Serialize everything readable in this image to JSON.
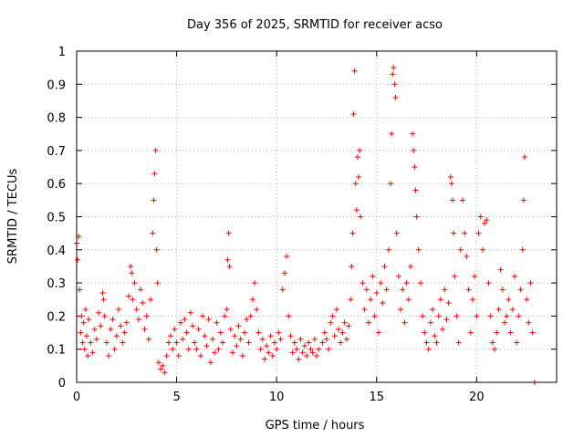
{
  "chart_data": {
    "type": "scatter",
    "title": "Day 356 of 2025, SRMTID for receiver acso",
    "xlabel": "GPS time / hours",
    "ylabel": "SRMTID / TECUs",
    "xlim": [
      0,
      24
    ],
    "ylim": [
      0,
      1
    ],
    "xticks": [
      0,
      5,
      10,
      15,
      20
    ],
    "xtick_labels": [
      "0",
      "5",
      "10",
      "15",
      "20"
    ],
    "yticks": [
      0,
      0.1,
      0.2,
      0.3,
      0.4,
      0.5,
      0.6,
      0.7,
      0.8,
      0.9,
      1
    ],
    "ytick_labels": [
      "0",
      "0.1",
      "0.2",
      "0.3",
      "0.4",
      "0.5",
      "0.6",
      "0.7",
      "0.8",
      "0.9",
      "1"
    ],
    "grid": true,
    "marker": "plus",
    "color": "#ff0000",
    "series": [
      {
        "name": "SRMTID",
        "points": [
          [
            0.0,
            0.42
          ],
          [
            0.05,
            0.37
          ],
          [
            0.1,
            0.44
          ],
          [
            0.15,
            0.28
          ],
          [
            0.2,
            0.15
          ],
          [
            0.25,
            0.2
          ],
          [
            0.3,
            0.12
          ],
          [
            0.35,
            0.18
          ],
          [
            0.4,
            0.1
          ],
          [
            0.45,
            0.22
          ],
          [
            0.5,
            0.14
          ],
          [
            0.55,
            0.08
          ],
          [
            0.6,
            0.19
          ],
          [
            0.7,
            0.12
          ],
          [
            0.8,
            0.09
          ],
          [
            0.9,
            0.16
          ],
          [
            1.0,
            0.13
          ],
          [
            1.1,
            0.21
          ],
          [
            1.2,
            0.17
          ],
          [
            1.3,
            0.27
          ],
          [
            1.35,
            0.25
          ],
          [
            1.4,
            0.2
          ],
          [
            1.5,
            0.12
          ],
          [
            1.6,
            0.08
          ],
          [
            1.7,
            0.16
          ],
          [
            1.8,
            0.19
          ],
          [
            1.9,
            0.1
          ],
          [
            2.0,
            0.14
          ],
          [
            2.1,
            0.22
          ],
          [
            2.2,
            0.17
          ],
          [
            2.3,
            0.12
          ],
          [
            2.4,
            0.15
          ],
          [
            2.5,
            0.18
          ],
          [
            2.6,
            0.26
          ],
          [
            2.7,
            0.35
          ],
          [
            2.75,
            0.33
          ],
          [
            2.8,
            0.25
          ],
          [
            2.9,
            0.3
          ],
          [
            3.0,
            0.22
          ],
          [
            3.1,
            0.19
          ],
          [
            3.2,
            0.28
          ],
          [
            3.3,
            0.24
          ],
          [
            3.4,
            0.16
          ],
          [
            3.5,
            0.2
          ],
          [
            3.6,
            0.13
          ],
          [
            3.7,
            0.25
          ],
          [
            3.8,
            0.45
          ],
          [
            3.85,
            0.55
          ],
          [
            3.9,
            0.63
          ],
          [
            3.95,
            0.7
          ],
          [
            4.0,
            0.4
          ],
          [
            4.05,
            0.3
          ],
          [
            4.1,
            0.06
          ],
          [
            4.2,
            0.04
          ],
          [
            4.3,
            0.05
          ],
          [
            4.4,
            0.03
          ],
          [
            4.5,
            0.08
          ],
          [
            4.6,
            0.12
          ],
          [
            4.7,
            0.14
          ],
          [
            4.8,
            0.1
          ],
          [
            4.9,
            0.16
          ],
          [
            5.0,
            0.12
          ],
          [
            5.1,
            0.08
          ],
          [
            5.2,
            0.18
          ],
          [
            5.3,
            0.13
          ],
          [
            5.4,
            0.19
          ],
          [
            5.5,
            0.15
          ],
          [
            5.6,
            0.1
          ],
          [
            5.7,
            0.21
          ],
          [
            5.8,
            0.17
          ],
          [
            5.9,
            0.12
          ],
          [
            6.0,
            0.1
          ],
          [
            6.1,
            0.16
          ],
          [
            6.2,
            0.08
          ],
          [
            6.3,
            0.2
          ],
          [
            6.4,
            0.14
          ],
          [
            6.5,
            0.11
          ],
          [
            6.6,
            0.19
          ],
          [
            6.7,
            0.06
          ],
          [
            6.8,
            0.13
          ],
          [
            6.9,
            0.09
          ],
          [
            7.0,
            0.18
          ],
          [
            7.1,
            0.1
          ],
          [
            7.2,
            0.15
          ],
          [
            7.3,
            0.12
          ],
          [
            7.4,
            0.2
          ],
          [
            7.5,
            0.22
          ],
          [
            7.55,
            0.37
          ],
          [
            7.6,
            0.45
          ],
          [
            7.65,
            0.35
          ],
          [
            7.7,
            0.16
          ],
          [
            7.8,
            0.09
          ],
          [
            7.9,
            0.14
          ],
          [
            8.0,
            0.11
          ],
          [
            8.1,
            0.17
          ],
          [
            8.2,
            0.13
          ],
          [
            8.3,
            0.08
          ],
          [
            8.4,
            0.15
          ],
          [
            8.5,
            0.19
          ],
          [
            8.6,
            0.12
          ],
          [
            8.7,
            0.2
          ],
          [
            8.8,
            0.25
          ],
          [
            8.9,
            0.3
          ],
          [
            9.0,
            0.22
          ],
          [
            9.1,
            0.15
          ],
          [
            9.2,
            0.1
          ],
          [
            9.3,
            0.13
          ],
          [
            9.4,
            0.07
          ],
          [
            9.5,
            0.11
          ],
          [
            9.6,
            0.09
          ],
          [
            9.7,
            0.14
          ],
          [
            9.8,
            0.08
          ],
          [
            9.9,
            0.12
          ],
          [
            10.0,
            0.1
          ],
          [
            10.1,
            0.15
          ],
          [
            10.2,
            0.13
          ],
          [
            10.3,
            0.28
          ],
          [
            10.4,
            0.33
          ],
          [
            10.5,
            0.38
          ],
          [
            10.6,
            0.2
          ],
          [
            10.7,
            0.14
          ],
          [
            10.8,
            0.09
          ],
          [
            10.9,
            0.12
          ],
          [
            11.0,
            0.1
          ],
          [
            11.1,
            0.07
          ],
          [
            11.2,
            0.13
          ],
          [
            11.3,
            0.09
          ],
          [
            11.4,
            0.11
          ],
          [
            11.5,
            0.08
          ],
          [
            11.6,
            0.12
          ],
          [
            11.7,
            0.1
          ],
          [
            11.8,
            0.09
          ],
          [
            11.9,
            0.13
          ],
          [
            12.0,
            0.08
          ],
          [
            12.1,
            0.1
          ],
          [
            12.3,
            0.12
          ],
          [
            12.4,
            0.15
          ],
          [
            12.5,
            0.13
          ],
          [
            12.6,
            0.1
          ],
          [
            12.7,
            0.18
          ],
          [
            12.8,
            0.2
          ],
          [
            12.9,
            0.14
          ],
          [
            13.0,
            0.22
          ],
          [
            13.1,
            0.16
          ],
          [
            13.2,
            0.12
          ],
          [
            13.3,
            0.15
          ],
          [
            13.4,
            0.18
          ],
          [
            13.5,
            0.13
          ],
          [
            13.6,
            0.17
          ],
          [
            13.7,
            0.25
          ],
          [
            13.75,
            0.35
          ],
          [
            13.8,
            0.45
          ],
          [
            13.85,
            0.81
          ],
          [
            13.9,
            0.94
          ],
          [
            13.95,
            0.6
          ],
          [
            14.0,
            0.52
          ],
          [
            14.05,
            0.68
          ],
          [
            14.1,
            0.62
          ],
          [
            14.15,
            0.7
          ],
          [
            14.2,
            0.5
          ],
          [
            14.3,
            0.3
          ],
          [
            14.4,
            0.22
          ],
          [
            14.5,
            0.28
          ],
          [
            14.6,
            0.18
          ],
          [
            14.7,
            0.25
          ],
          [
            14.8,
            0.32
          ],
          [
            14.9,
            0.2
          ],
          [
            15.0,
            0.27
          ],
          [
            15.1,
            0.15
          ],
          [
            15.2,
            0.3
          ],
          [
            15.3,
            0.24
          ],
          [
            15.4,
            0.35
          ],
          [
            15.5,
            0.28
          ],
          [
            15.6,
            0.4
          ],
          [
            15.7,
            0.6
          ],
          [
            15.75,
            0.75
          ],
          [
            15.8,
            0.93
          ],
          [
            15.85,
            0.95
          ],
          [
            15.9,
            0.9
          ],
          [
            15.95,
            0.86
          ],
          [
            16.0,
            0.45
          ],
          [
            16.1,
            0.32
          ],
          [
            16.2,
            0.22
          ],
          [
            16.3,
            0.28
          ],
          [
            16.4,
            0.18
          ],
          [
            16.5,
            0.3
          ],
          [
            16.6,
            0.25
          ],
          [
            16.7,
            0.35
          ],
          [
            16.8,
            0.75
          ],
          [
            16.85,
            0.7
          ],
          [
            16.9,
            0.65
          ],
          [
            16.95,
            0.58
          ],
          [
            17.0,
            0.5
          ],
          [
            17.1,
            0.4
          ],
          [
            17.2,
            0.3
          ],
          [
            17.3,
            0.2
          ],
          [
            17.4,
            0.15
          ],
          [
            17.5,
            0.12
          ],
          [
            17.6,
            0.1
          ],
          [
            17.7,
            0.18
          ],
          [
            17.8,
            0.22
          ],
          [
            17.9,
            0.14
          ],
          [
            18.0,
            0.12
          ],
          [
            18.1,
            0.2
          ],
          [
            18.2,
            0.25
          ],
          [
            18.3,
            0.16
          ],
          [
            18.4,
            0.28
          ],
          [
            18.5,
            0.19
          ],
          [
            18.6,
            0.24
          ],
          [
            18.7,
            0.62
          ],
          [
            18.75,
            0.6
          ],
          [
            18.8,
            0.55
          ],
          [
            18.85,
            0.45
          ],
          [
            18.9,
            0.32
          ],
          [
            19.0,
            0.2
          ],
          [
            19.1,
            0.12
          ],
          [
            19.2,
            0.4
          ],
          [
            19.3,
            0.55
          ],
          [
            19.4,
            0.45
          ],
          [
            19.5,
            0.38
          ],
          [
            19.6,
            0.28
          ],
          [
            19.7,
            0.15
          ],
          [
            19.8,
            0.25
          ],
          [
            19.9,
            0.32
          ],
          [
            20.0,
            0.2
          ],
          [
            20.1,
            0.45
          ],
          [
            20.2,
            0.5
          ],
          [
            20.3,
            0.4
          ],
          [
            20.4,
            0.48
          ],
          [
            20.5,
            0.49
          ],
          [
            20.6,
            0.3
          ],
          [
            20.7,
            0.2
          ],
          [
            20.8,
            0.12
          ],
          [
            20.9,
            0.1
          ],
          [
            21.0,
            0.15
          ],
          [
            21.1,
            0.22
          ],
          [
            21.2,
            0.34
          ],
          [
            21.3,
            0.28
          ],
          [
            21.4,
            0.18
          ],
          [
            21.5,
            0.2
          ],
          [
            21.6,
            0.25
          ],
          [
            21.7,
            0.15
          ],
          [
            21.8,
            0.22
          ],
          [
            21.9,
            0.32
          ],
          [
            22.0,
            0.12
          ],
          [
            22.1,
            0.2
          ],
          [
            22.2,
            0.28
          ],
          [
            22.3,
            0.4
          ],
          [
            22.35,
            0.55
          ],
          [
            22.4,
            0.68
          ],
          [
            22.5,
            0.25
          ],
          [
            22.6,
            0.18
          ],
          [
            22.7,
            0.3
          ],
          [
            22.8,
            0.15
          ],
          [
            22.9,
            0.0
          ]
        ]
      }
    ]
  }
}
